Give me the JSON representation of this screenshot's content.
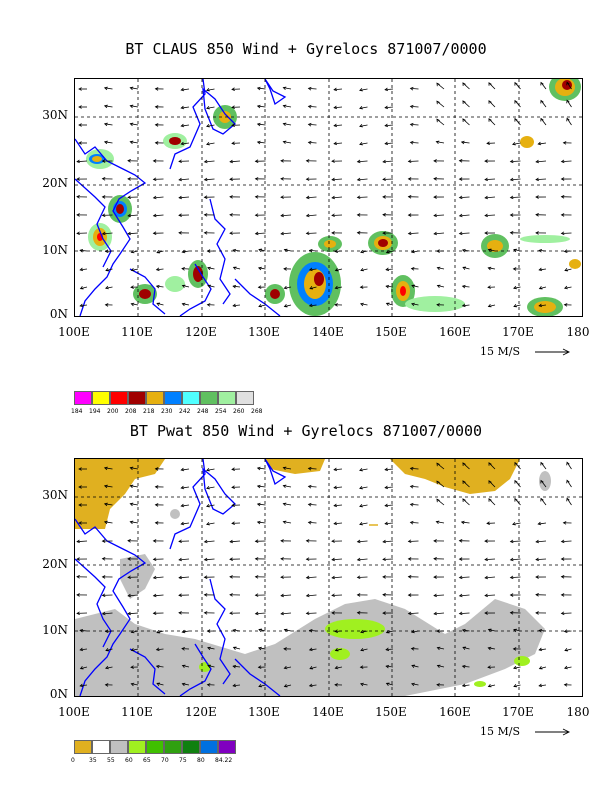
{
  "panels": [
    {
      "title": "BT CLAUS 850 Wind + Gyrelocs 871007/0000",
      "x_ticks": [
        "100E",
        "110E",
        "120E",
        "130E",
        "140E",
        "150E",
        "160E",
        "170E",
        "180"
      ],
      "y_ticks": [
        "30N",
        "20N",
        "10N",
        "0N"
      ],
      "ref_vector": "15 M/S",
      "legend_colors": [
        "#ff00ff",
        "#ffff00",
        "#ff0000",
        "#a00000",
        "#e6b010",
        "#0080ff",
        "#50ffff",
        "#60c060",
        "#a0f0a0",
        "#e0e0e0"
      ],
      "legend_labels": [
        "184",
        "194",
        "200",
        "208",
        "218",
        "230",
        "242",
        "248",
        "254",
        "260",
        "268"
      ]
    },
    {
      "title": "BT Pwat 850 Wind + Gyrelocs 871007/0000",
      "x_ticks": [
        "100E",
        "110E",
        "120E",
        "130E",
        "140E",
        "150E",
        "160E",
        "170E",
        "180"
      ],
      "y_ticks": [
        "30N",
        "20N",
        "10N",
        "0N"
      ],
      "ref_vector": "15 M/S",
      "legend_colors": [
        "#e0b020",
        "#ffffff",
        "#c0c0c0",
        "#a0f020",
        "#40c000",
        "#30a010",
        "#108010",
        "#0070e0",
        "#8000c0"
      ],
      "legend_labels": [
        "0",
        "35",
        "55",
        "60",
        "65",
        "70",
        "75",
        "80",
        "84.22"
      ]
    }
  ]
}
